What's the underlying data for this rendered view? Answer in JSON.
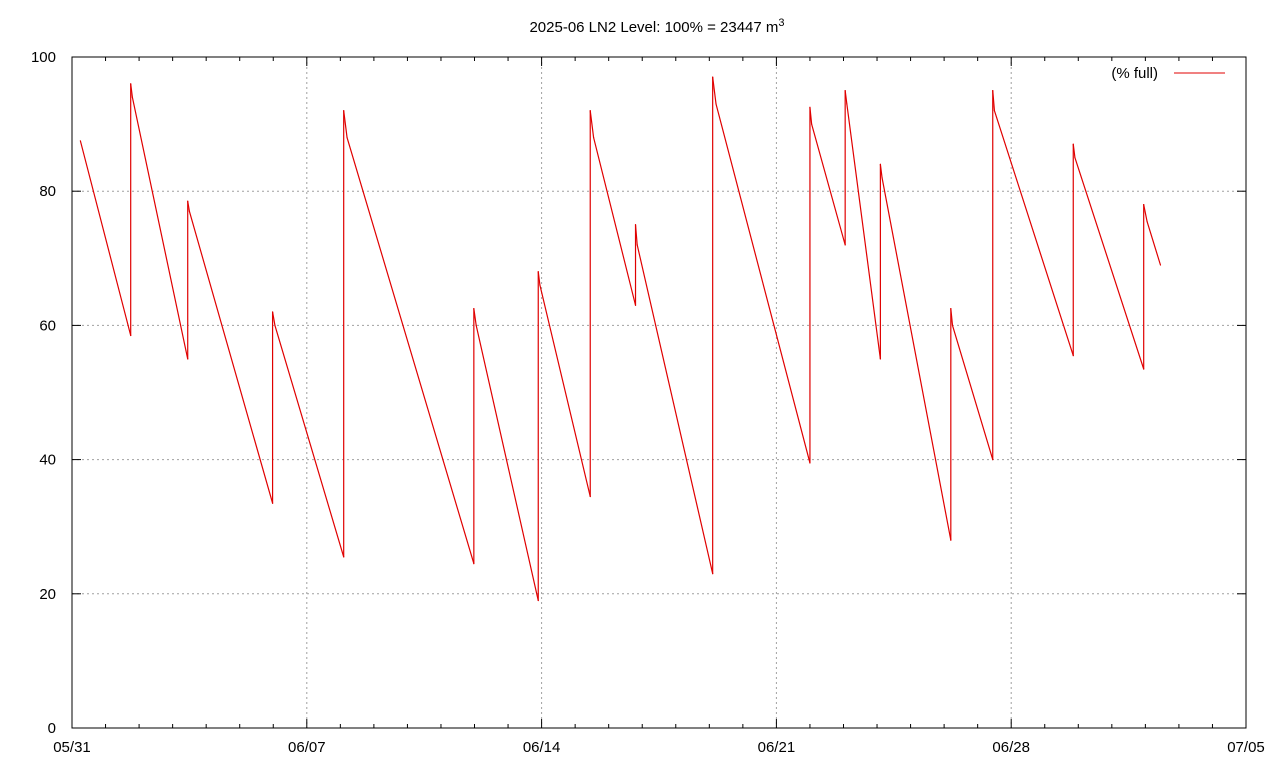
{
  "chart_data": {
    "type": "line",
    "title": "2025-06 LN2 Level: 100% = 23447 m",
    "title_superscript": "3",
    "xlabel": "",
    "ylabel": "",
    "x_ticks": [
      "05/31",
      "06/07",
      "06/14",
      "06/21",
      "06/28",
      "07/05"
    ],
    "y_ticks": [
      0,
      20,
      40,
      60,
      80,
      100
    ],
    "x_range": [
      "2025-05-31",
      "2025-07-05"
    ],
    "ylim": [
      0,
      100
    ],
    "grid": true,
    "legend_position": "top-right",
    "colors": {
      "series": "#e00000",
      "grid": "#a0a0a0",
      "axis": "#000000"
    },
    "series": [
      {
        "name": "(% full)",
        "x_days": [
          0.25,
          1.75,
          1.75,
          1.8,
          3.45,
          3.45,
          3.5,
          5.98,
          5.98,
          6.05,
          8.1,
          8.1,
          8.2,
          11.98,
          11.98,
          12.05,
          13.9,
          13.9,
          13.95,
          15.45,
          15.45,
          15.55,
          16.8,
          16.8,
          16.85,
          19.1,
          19.1,
          19.2,
          22.0,
          22.0,
          22.05,
          23.05,
          23.05,
          23.1,
          24.1,
          24.1,
          24.15,
          26.2,
          26.2,
          26.25,
          27.45,
          27.45,
          27.5,
          29.85,
          29.85,
          29.9,
          31.95,
          31.95,
          32.05,
          32.45
        ],
        "y": [
          87.5,
          58.5,
          96,
          94,
          55,
          78.5,
          77,
          33.5,
          62,
          60,
          25.5,
          92,
          88,
          24.5,
          62.5,
          60,
          19,
          68,
          66,
          34.5,
          92,
          88,
          63,
          75,
          72,
          23,
          97,
          93,
          39.5,
          92.5,
          90,
          72,
          95,
          93,
          55,
          84,
          82,
          28,
          62.5,
          60,
          40,
          95,
          92,
          55.5,
          87,
          85,
          53.5,
          78,
          75.5,
          69
        ]
      }
    ]
  }
}
